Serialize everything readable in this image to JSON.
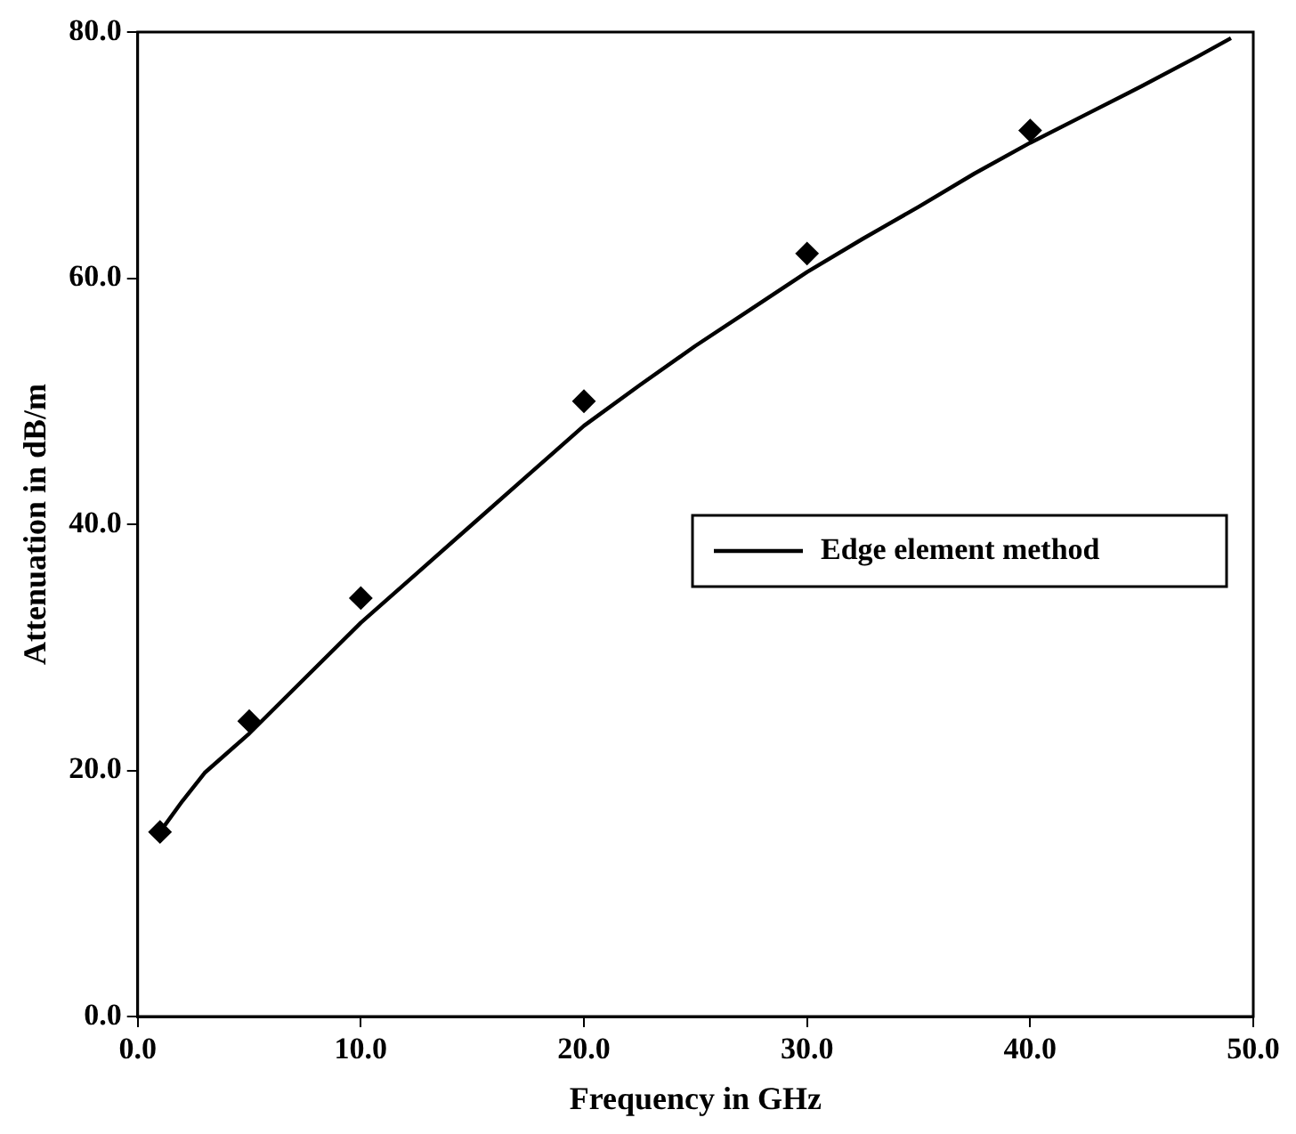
{
  "chart_data": {
    "type": "line",
    "xlabel": "Frequency in GHz",
    "ylabel": "Attenuation in dB/m",
    "xlim": [
      0,
      50
    ],
    "ylim": [
      0,
      80
    ],
    "xticks": [
      {
        "value": 0,
        "label": "0.0"
      },
      {
        "value": 10,
        "label": "10.0"
      },
      {
        "value": 20,
        "label": "20.0"
      },
      {
        "value": 30,
        "label": "30.0"
      },
      {
        "value": 40,
        "label": "40.0"
      },
      {
        "value": 50,
        "label": "50.0"
      }
    ],
    "yticks": [
      {
        "value": 0,
        "label": "0.0"
      },
      {
        "value": 20,
        "label": "20.0"
      },
      {
        "value": 40,
        "label": "40.0"
      },
      {
        "value": 60,
        "label": "60.0"
      },
      {
        "value": 80,
        "label": "80.0"
      }
    ],
    "grid": false,
    "legend": "right",
    "series": [
      {
        "name": "Edge element method",
        "color": "#000000",
        "marker": "none",
        "line_style": "solid",
        "x": [
          1,
          2,
          3,
          5,
          7.5,
          10,
          12.5,
          15,
          17.5,
          20,
          22.5,
          25,
          27.5,
          30,
          32.5,
          35,
          37.5,
          40,
          42.5,
          45,
          47.5,
          49
        ],
        "values": [
          15,
          17.5,
          19.8,
          23,
          27.5,
          32,
          36,
          40,
          44,
          48,
          51.3,
          54.5,
          57.5,
          60.5,
          63.2,
          65.8,
          68.5,
          71,
          73.3,
          75.6,
          78,
          79.5
        ]
      },
      {
        "type": "scatter",
        "color": "#000000",
        "marker": "diamond",
        "x": [
          1,
          5,
          10,
          20,
          30,
          40
        ],
        "values": [
          15,
          24,
          34,
          50,
          62,
          72
        ]
      }
    ]
  }
}
